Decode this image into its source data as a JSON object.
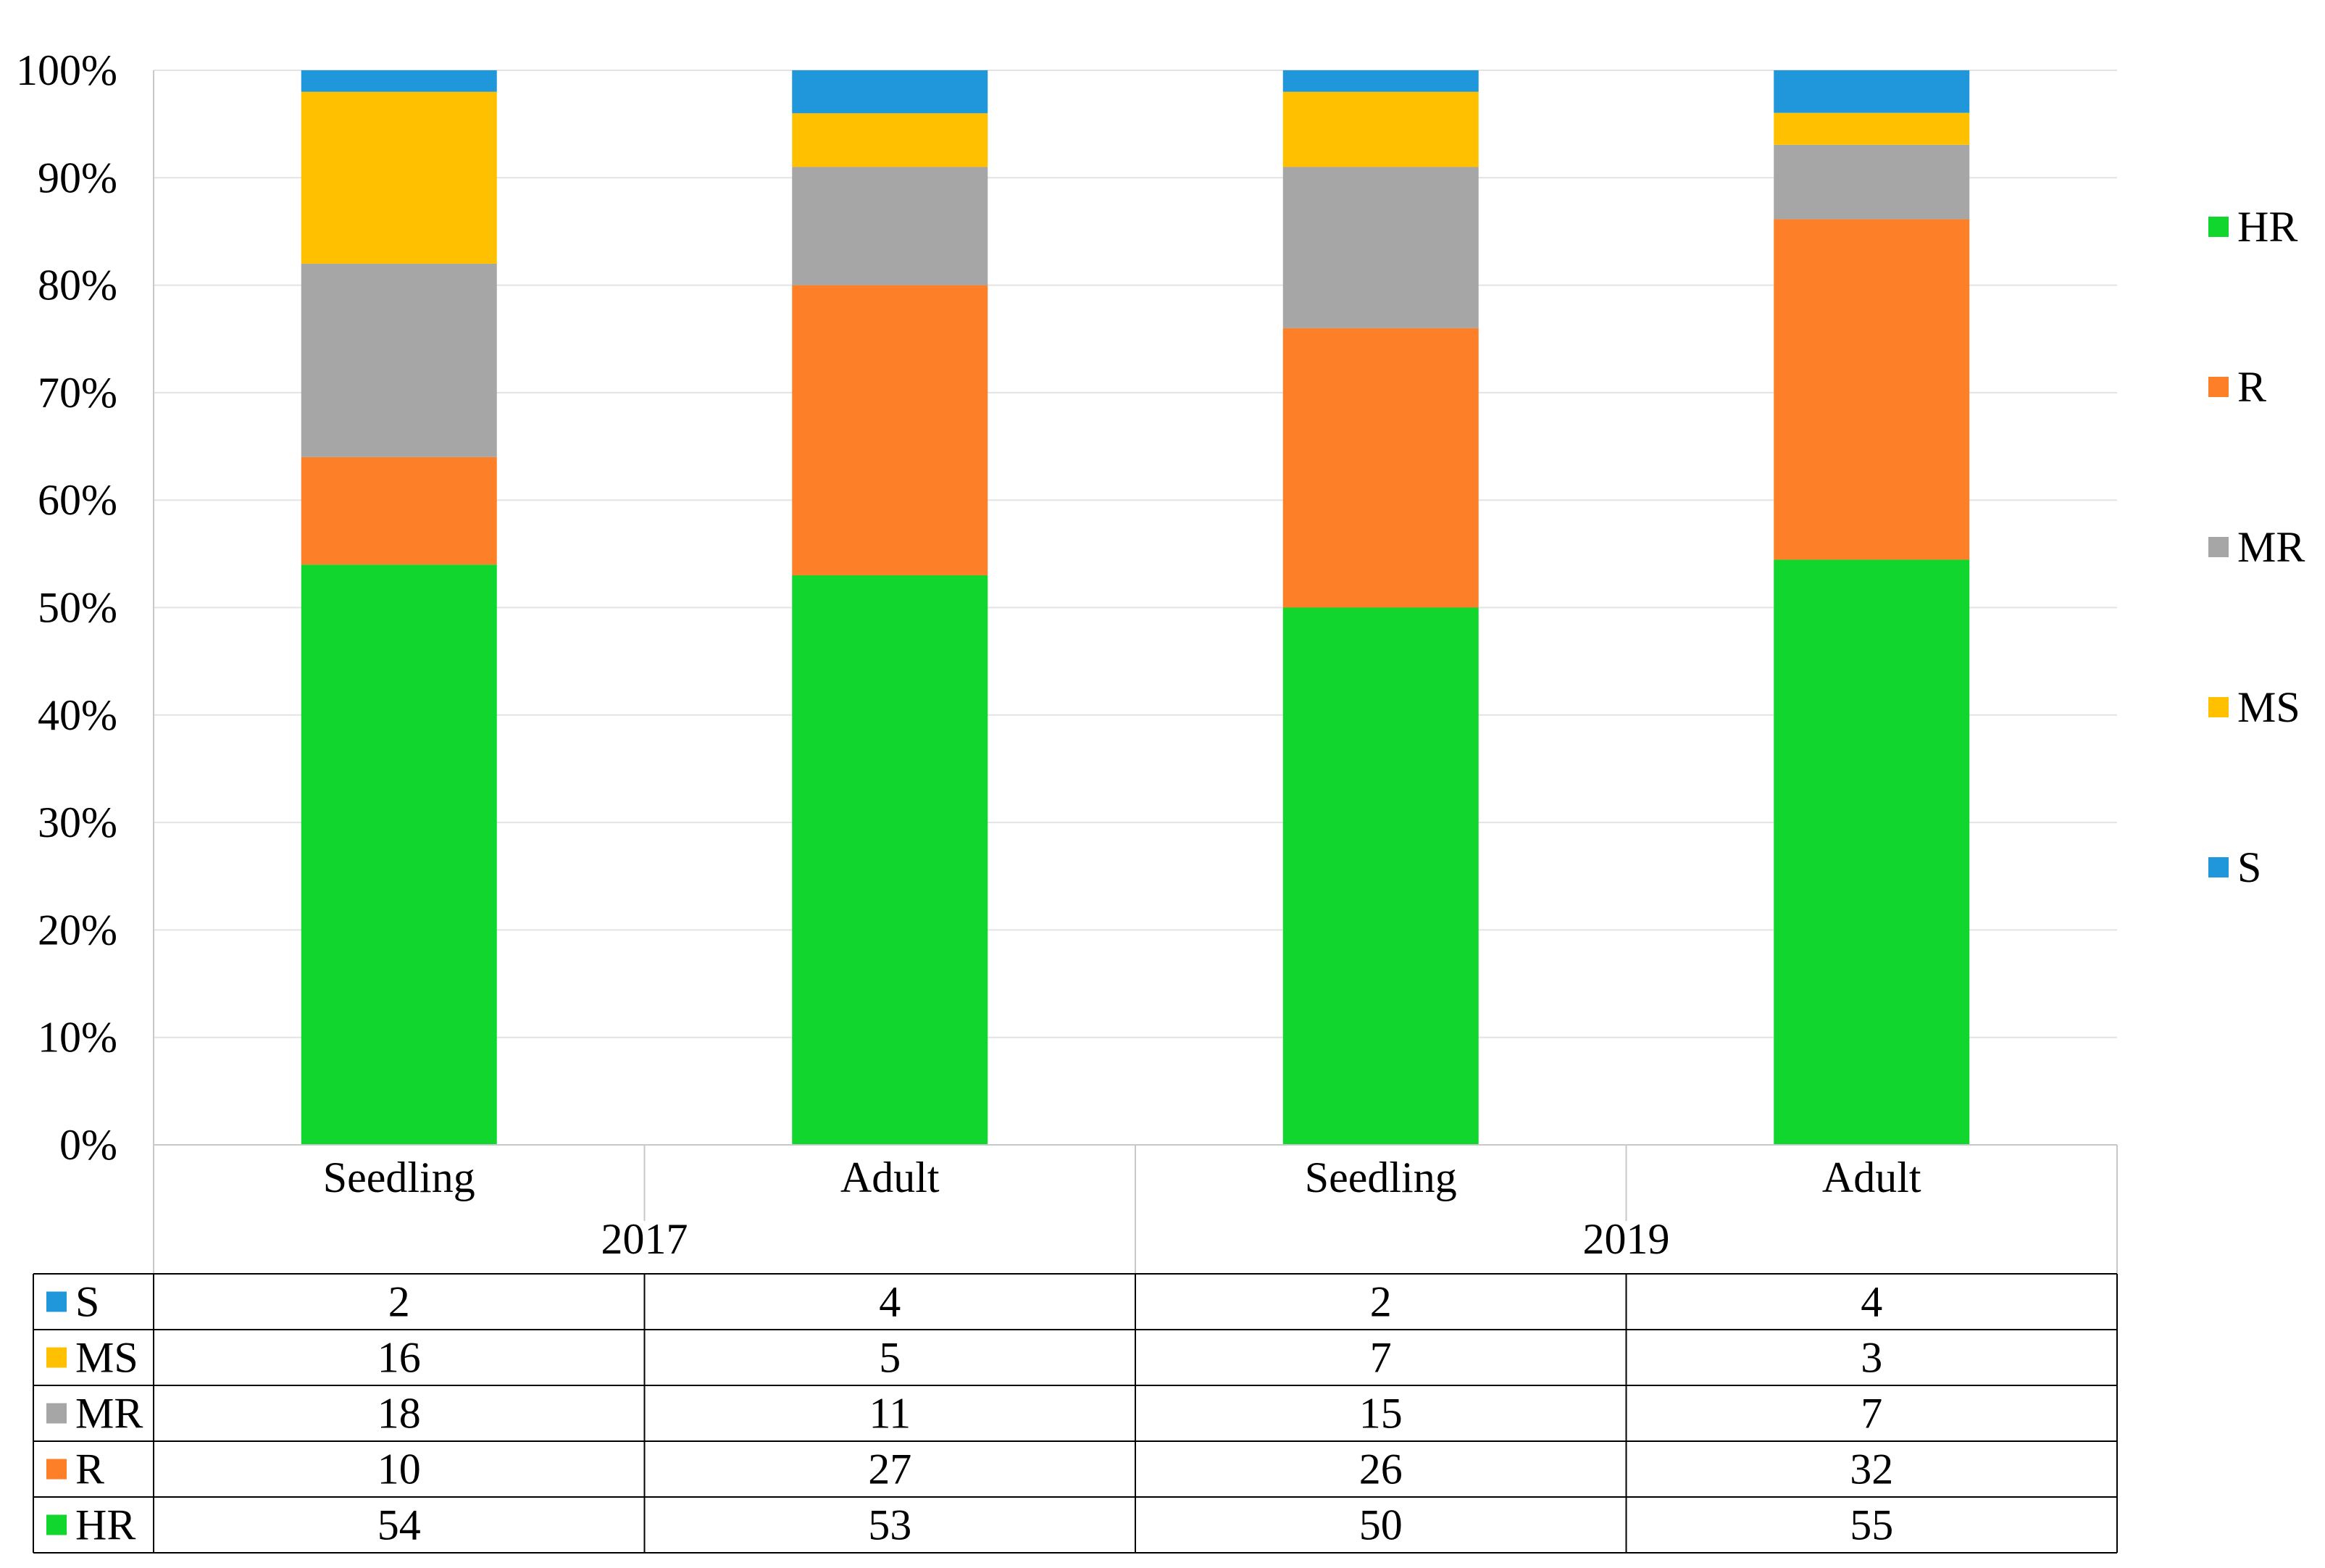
{
  "chart_data": {
    "type": "bar",
    "stacked": true,
    "percent_stacked": true,
    "title": "",
    "xlabel": "",
    "ylabel": "",
    "ylim": [
      0,
      100
    ],
    "yticks": [
      "0%",
      "10%",
      "20%",
      "30%",
      "40%",
      "50%",
      "60%",
      "70%",
      "80%",
      "90%",
      "100%"
    ],
    "categories": [
      "Seedling",
      "Adult",
      "Seedling",
      "Adult"
    ],
    "groups": [
      {
        "label": "2017",
        "category_indices": [
          0,
          1
        ]
      },
      {
        "label": "2019",
        "category_indices": [
          2,
          3
        ]
      }
    ],
    "series": [
      {
        "name": "HR",
        "color": "#11d62e",
        "values": [
          54,
          53,
          50,
          55
        ]
      },
      {
        "name": "R",
        "color": "#fd7f28",
        "values": [
          10,
          27,
          26,
          32
        ]
      },
      {
        "name": "MR",
        "color": "#a6a6a6",
        "values": [
          18,
          11,
          15,
          7
        ]
      },
      {
        "name": "MS",
        "color": "#ffc000",
        "values": [
          16,
          5,
          7,
          3
        ]
      },
      {
        "name": "S",
        "color": "#1f97da",
        "values": [
          2,
          4,
          2,
          4
        ]
      }
    ],
    "legend": {
      "placement": "right",
      "order": [
        "HR",
        "R",
        "MR",
        "MS",
        "S"
      ]
    },
    "data_table": {
      "row_order": [
        "S",
        "MS",
        "MR",
        "R",
        "HR"
      ]
    },
    "grid": true
  }
}
